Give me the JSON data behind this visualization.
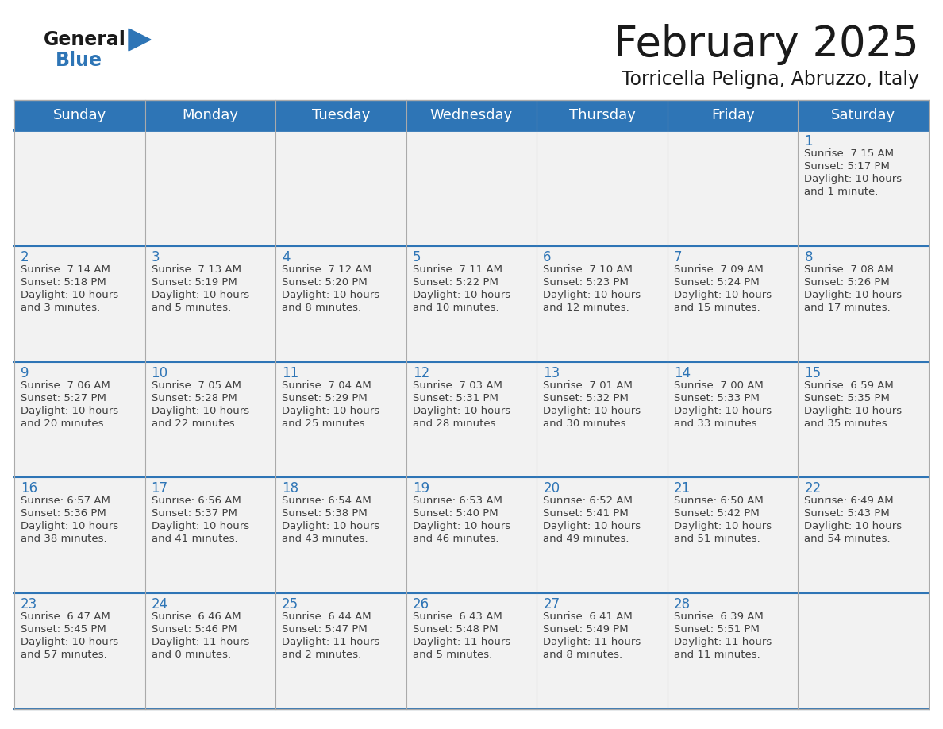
{
  "title": "February 2025",
  "subtitle": "Torricella Peligna, Abruzzo, Italy",
  "header_bg": "#2E75B6",
  "header_text": "#FFFFFF",
  "cell_bg": "#F2F2F2",
  "cell_border_color": "#2E75B6",
  "outer_border_color": "#CCCCCC",
  "day_number_color": "#2E75B6",
  "info_text_color": "#404040",
  "days_of_week": [
    "Sunday",
    "Monday",
    "Tuesday",
    "Wednesday",
    "Thursday",
    "Friday",
    "Saturday"
  ],
  "weeks": [
    [
      {
        "day": "",
        "info": ""
      },
      {
        "day": "",
        "info": ""
      },
      {
        "day": "",
        "info": ""
      },
      {
        "day": "",
        "info": ""
      },
      {
        "day": "",
        "info": ""
      },
      {
        "day": "",
        "info": ""
      },
      {
        "day": "1",
        "info": "Sunrise: 7:15 AM\nSunset: 5:17 PM\nDaylight: 10 hours\nand 1 minute."
      }
    ],
    [
      {
        "day": "2",
        "info": "Sunrise: 7:14 AM\nSunset: 5:18 PM\nDaylight: 10 hours\nand 3 minutes."
      },
      {
        "day": "3",
        "info": "Sunrise: 7:13 AM\nSunset: 5:19 PM\nDaylight: 10 hours\nand 5 minutes."
      },
      {
        "day": "4",
        "info": "Sunrise: 7:12 AM\nSunset: 5:20 PM\nDaylight: 10 hours\nand 8 minutes."
      },
      {
        "day": "5",
        "info": "Sunrise: 7:11 AM\nSunset: 5:22 PM\nDaylight: 10 hours\nand 10 minutes."
      },
      {
        "day": "6",
        "info": "Sunrise: 7:10 AM\nSunset: 5:23 PM\nDaylight: 10 hours\nand 12 minutes."
      },
      {
        "day": "7",
        "info": "Sunrise: 7:09 AM\nSunset: 5:24 PM\nDaylight: 10 hours\nand 15 minutes."
      },
      {
        "day": "8",
        "info": "Sunrise: 7:08 AM\nSunset: 5:26 PM\nDaylight: 10 hours\nand 17 minutes."
      }
    ],
    [
      {
        "day": "9",
        "info": "Sunrise: 7:06 AM\nSunset: 5:27 PM\nDaylight: 10 hours\nand 20 minutes."
      },
      {
        "day": "10",
        "info": "Sunrise: 7:05 AM\nSunset: 5:28 PM\nDaylight: 10 hours\nand 22 minutes."
      },
      {
        "day": "11",
        "info": "Sunrise: 7:04 AM\nSunset: 5:29 PM\nDaylight: 10 hours\nand 25 minutes."
      },
      {
        "day": "12",
        "info": "Sunrise: 7:03 AM\nSunset: 5:31 PM\nDaylight: 10 hours\nand 28 minutes."
      },
      {
        "day": "13",
        "info": "Sunrise: 7:01 AM\nSunset: 5:32 PM\nDaylight: 10 hours\nand 30 minutes."
      },
      {
        "day": "14",
        "info": "Sunrise: 7:00 AM\nSunset: 5:33 PM\nDaylight: 10 hours\nand 33 minutes."
      },
      {
        "day": "15",
        "info": "Sunrise: 6:59 AM\nSunset: 5:35 PM\nDaylight: 10 hours\nand 35 minutes."
      }
    ],
    [
      {
        "day": "16",
        "info": "Sunrise: 6:57 AM\nSunset: 5:36 PM\nDaylight: 10 hours\nand 38 minutes."
      },
      {
        "day": "17",
        "info": "Sunrise: 6:56 AM\nSunset: 5:37 PM\nDaylight: 10 hours\nand 41 minutes."
      },
      {
        "day": "18",
        "info": "Sunrise: 6:54 AM\nSunset: 5:38 PM\nDaylight: 10 hours\nand 43 minutes."
      },
      {
        "day": "19",
        "info": "Sunrise: 6:53 AM\nSunset: 5:40 PM\nDaylight: 10 hours\nand 46 minutes."
      },
      {
        "day": "20",
        "info": "Sunrise: 6:52 AM\nSunset: 5:41 PM\nDaylight: 10 hours\nand 49 minutes."
      },
      {
        "day": "21",
        "info": "Sunrise: 6:50 AM\nSunset: 5:42 PM\nDaylight: 10 hours\nand 51 minutes."
      },
      {
        "day": "22",
        "info": "Sunrise: 6:49 AM\nSunset: 5:43 PM\nDaylight: 10 hours\nand 54 minutes."
      }
    ],
    [
      {
        "day": "23",
        "info": "Sunrise: 6:47 AM\nSunset: 5:45 PM\nDaylight: 10 hours\nand 57 minutes."
      },
      {
        "day": "24",
        "info": "Sunrise: 6:46 AM\nSunset: 5:46 PM\nDaylight: 11 hours\nand 0 minutes."
      },
      {
        "day": "25",
        "info": "Sunrise: 6:44 AM\nSunset: 5:47 PM\nDaylight: 11 hours\nand 2 minutes."
      },
      {
        "day": "26",
        "info": "Sunrise: 6:43 AM\nSunset: 5:48 PM\nDaylight: 11 hours\nand 5 minutes."
      },
      {
        "day": "27",
        "info": "Sunrise: 6:41 AM\nSunset: 5:49 PM\nDaylight: 11 hours\nand 8 minutes."
      },
      {
        "day": "28",
        "info": "Sunrise: 6:39 AM\nSunset: 5:51 PM\nDaylight: 11 hours\nand 11 minutes."
      },
      {
        "day": "",
        "info": ""
      }
    ]
  ],
  "logo_general_color": "#1a1a1a",
  "logo_blue_color": "#2E75B6",
  "logo_triangle_color": "#2E75B6",
  "title_fontsize": 38,
  "subtitle_fontsize": 17,
  "header_fontsize": 13,
  "day_number_fontsize": 12,
  "info_fontsize": 9.5
}
